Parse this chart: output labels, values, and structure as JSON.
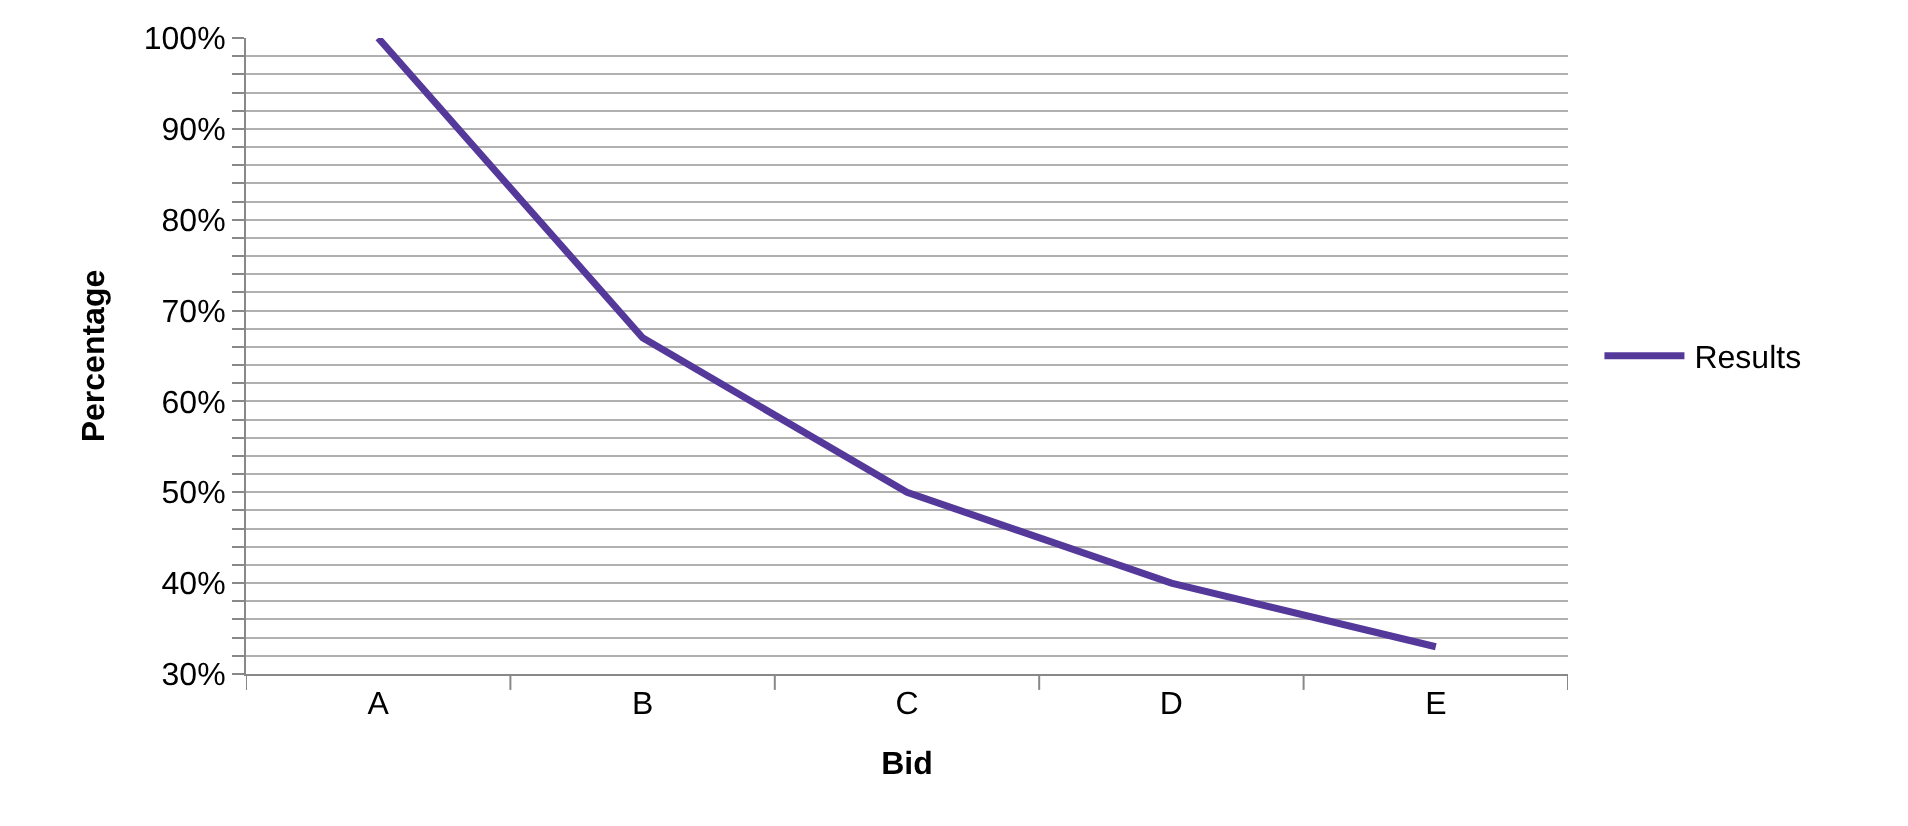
{
  "chart_data": {
    "type": "line",
    "xlabel": "Bid",
    "ylabel": "Percentage",
    "categories": [
      "A",
      "B",
      "C",
      "D",
      "E"
    ],
    "series": [
      {
        "name": "Results",
        "color": "#55399a",
        "values": [
          100,
          67,
          50,
          40,
          33
        ]
      }
    ],
    "ylim": [
      30,
      100
    ],
    "yticks": [
      {
        "value": 30,
        "label": "30%"
      },
      {
        "value": 32,
        "label": null
      },
      {
        "value": 34,
        "label": null
      },
      {
        "value": 36,
        "label": null
      },
      {
        "value": 38,
        "label": null
      },
      {
        "value": 40,
        "label": "40%"
      },
      {
        "value": 42,
        "label": null
      },
      {
        "value": 44,
        "label": null
      },
      {
        "value": 46,
        "label": null
      },
      {
        "value": 48,
        "label": null
      },
      {
        "value": 50,
        "label": "50%"
      },
      {
        "value": 52,
        "label": null
      },
      {
        "value": 54,
        "label": null
      },
      {
        "value": 56,
        "label": null
      },
      {
        "value": 58,
        "label": null
      },
      {
        "value": 60,
        "label": "60%"
      },
      {
        "value": 62,
        "label": null
      },
      {
        "value": 64,
        "label": null
      },
      {
        "value": 66,
        "label": null
      },
      {
        "value": 68,
        "label": null
      },
      {
        "value": 70,
        "label": "70%"
      },
      {
        "value": 72,
        "label": null
      },
      {
        "value": 74,
        "label": null
      },
      {
        "value": 76,
        "label": null
      },
      {
        "value": 78,
        "label": null
      },
      {
        "value": 80,
        "label": "80%"
      },
      {
        "value": 82,
        "label": null
      },
      {
        "value": 84,
        "label": null
      },
      {
        "value": 86,
        "label": null
      },
      {
        "value": 88,
        "label": null
      },
      {
        "value": 90,
        "label": "90%"
      },
      {
        "value": 92,
        "label": null
      },
      {
        "value": 94,
        "label": null
      },
      {
        "value": 96,
        "label": null
      },
      {
        "value": 98,
        "label": null
      },
      {
        "value": 100,
        "label": "100%"
      }
    ],
    "grid": "y",
    "legend": "right",
    "marker": "none",
    "line_style": "solid"
  }
}
